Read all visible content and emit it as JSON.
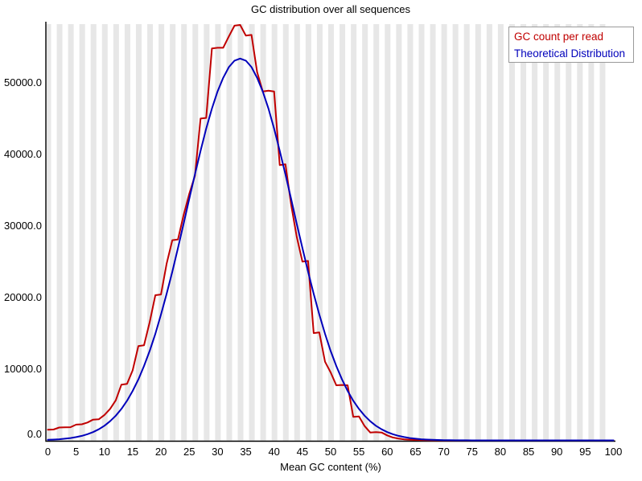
{
  "title": "GC distribution over all sequences",
  "x_axis": {
    "label": "Mean GC content (%)",
    "ticks": [
      0,
      5,
      10,
      15,
      20,
      25,
      30,
      35,
      40,
      45,
      50,
      55,
      60,
      65,
      70,
      75,
      80,
      85,
      90,
      95,
      100
    ]
  },
  "y_axis": {
    "tick_labels": [
      "0.0",
      "10000.0",
      "20000.0",
      "30000.0",
      "40000.0",
      "50000.0"
    ],
    "tick_values": [
      0,
      10000,
      20000,
      30000,
      40000,
      50000
    ]
  },
  "legend": {
    "items": [
      {
        "label": "GC count per read",
        "color": "#c00000"
      },
      {
        "label": "Theoretical Distribution",
        "color": "#0000bb"
      }
    ]
  },
  "style": {
    "stripe_color": "#e7e7e7",
    "axis_color": "#000000",
    "background_color": "#ffffff",
    "red_line_color": "#c00000",
    "blue_line_color": "#0000bb"
  },
  "chart_data": {
    "type": "line",
    "title": "GC distribution over all sequences",
    "xlabel": "Mean GC content (%)",
    "ylabel": "",
    "x_range": [
      0,
      100
    ],
    "x_tick_step": 5,
    "ylim": [
      0,
      58200
    ],
    "grid": "alternating vertical background stripes, one per 2% bin",
    "legend_position": "top-right",
    "x_step": 1,
    "series": [
      {
        "name": "GC count per read",
        "color": "#c00000",
        "style": "stepped polyline",
        "values": [
          1500,
          1520,
          1800,
          1820,
          1850,
          2200,
          2250,
          2500,
          2900,
          2950,
          3550,
          4400,
          5600,
          7800,
          7900,
          9800,
          13200,
          13300,
          16500,
          20300,
          20400,
          24700,
          28000,
          28100,
          31500,
          34500,
          37000,
          45000,
          45100,
          54800,
          54900,
          54900,
          56500,
          58000,
          58100,
          56600,
          56700,
          51500,
          48800,
          48900,
          48800,
          38500,
          38600,
          33000,
          28500,
          25000,
          25100,
          15000,
          15100,
          11000,
          9500,
          7700,
          7750,
          7700,
          3300,
          3350,
          2000,
          1100,
          1150,
          1100,
          700,
          400,
          250,
          150,
          100,
          60,
          40,
          25,
          15,
          10,
          5,
          3,
          2,
          1,
          1,
          0,
          0,
          0,
          0,
          0,
          0,
          0,
          0,
          0,
          0,
          0,
          0,
          0,
          0,
          0,
          0,
          0,
          0,
          0,
          0,
          0,
          0,
          0,
          0,
          0,
          0
        ]
      },
      {
        "name": "Theoretical Distribution",
        "color": "#0000bb",
        "style": "smooth normal curve, mean 34, sd 9.4, peak 53400",
        "values": [
          77,
          112,
          162,
          232,
          328,
          458,
          633,
          863,
          1160,
          1550,
          2050,
          2680,
          3450,
          4400,
          5550,
          6920,
          8530,
          10400,
          12500,
          14900,
          17600,
          20500,
          23600,
          26900,
          30300,
          33800,
          37200,
          40500,
          43600,
          46400,
          48800,
          50700,
          52200,
          53100,
          53400,
          53100,
          52200,
          50700,
          48800,
          46400,
          43600,
          40500,
          37200,
          33800,
          30300,
          26900,
          23600,
          20500,
          17600,
          14900,
          12500,
          10400,
          8530,
          6920,
          5550,
          4400,
          3450,
          2680,
          2050,
          1550,
          1160,
          863,
          633,
          458,
          328,
          232,
          162,
          112,
          77,
          52,
          35,
          23,
          15,
          9,
          6,
          4,
          2,
          2,
          1,
          1,
          0,
          0,
          0,
          0,
          0,
          0,
          0,
          0,
          0,
          0,
          0,
          0,
          0,
          0,
          0,
          0,
          0,
          0,
          0,
          0,
          0
        ]
      }
    ]
  }
}
